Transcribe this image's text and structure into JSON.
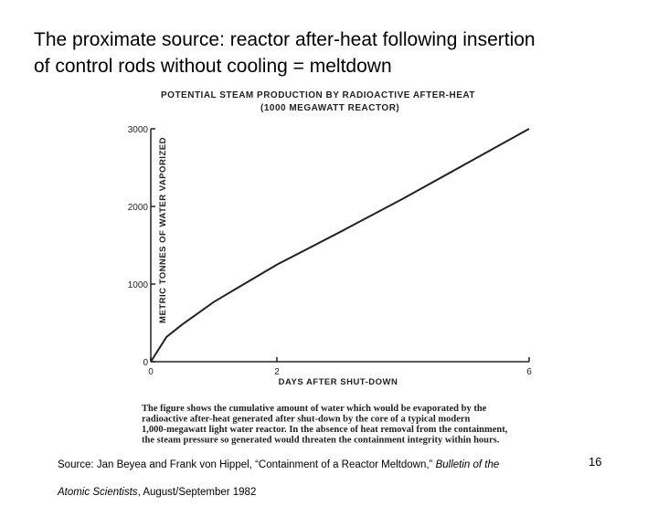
{
  "title_lines": [
    "The proximate source: reactor after-heat following insertion",
    "of control rods without cooling = meltdown"
  ],
  "chart_data": {
    "type": "line",
    "title": "POTENTIAL STEAM PRODUCTION BY RADIOACTIVE AFTER-HEAT",
    "subtitle": "(1000 MEGAWATT REACTOR)",
    "x_label": "DAYS AFTER SHUT-DOWN",
    "y_label": "METRIC TONNES OF WATER VAPORIZED",
    "x": [
      0,
      0.25,
      0.5,
      1,
      2,
      3,
      4,
      5,
      6
    ],
    "values": [
      0,
      320,
      480,
      770,
      1250,
      1670,
      2100,
      2550,
      3000
    ],
    "color": "#222222",
    "xlim": [
      0,
      6
    ],
    "xticks": [
      0,
      2,
      6
    ],
    "ylim": [
      0,
      3000
    ],
    "yticks": [
      0,
      1000,
      2000,
      3000
    ]
  },
  "caption_lines": [
    "The figure shows the cumulative amount of water which would be evaporated by the",
    "radioactive after-heat generated after shut-down by the core of a typical modern",
    "1,000-megawatt light water reactor. In the absence of heat removal from the containment,",
    "the steam pressure so generated would threaten the containment integrity within hours."
  ],
  "source": [
    {
      "text": "Source: Jan Beyea and Frank von Hippel, “Containment of a Reactor Meltdown,” ",
      "italic": false
    },
    {
      "text": "Bulletin of the Atomic Scientists",
      "italic": true
    },
    {
      "text": ", August/September 1982",
      "italic": false
    }
  ],
  "page_number": "16"
}
